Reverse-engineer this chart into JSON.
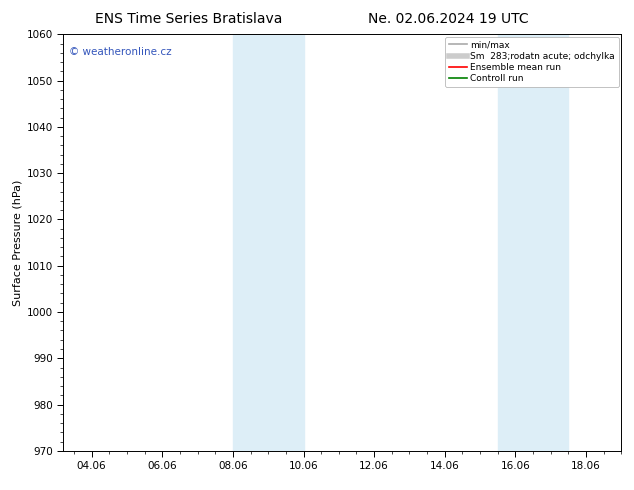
{
  "title_left": "ENS Time Series Bratislava",
  "title_right": "Ne. 02.06.2024 19 UTC",
  "ylabel": "Surface Pressure (hPa)",
  "ylim": [
    970,
    1060
  ],
  "yticks": [
    970,
    980,
    990,
    1000,
    1010,
    1020,
    1030,
    1040,
    1050,
    1060
  ],
  "xlim_start": 3.2,
  "xlim_end": 19.0,
  "xtick_labels": [
    "04.06",
    "06.06",
    "08.06",
    "10.06",
    "12.06",
    "14.06",
    "16.06",
    "18.06"
  ],
  "xtick_positions": [
    4,
    6,
    8,
    10,
    12,
    14,
    16,
    18
  ],
  "shaded_bands": [
    {
      "xmin": 8.0,
      "xmax": 10.0
    },
    {
      "xmin": 15.5,
      "xmax": 17.5
    }
  ],
  "shaded_color": "#ddeef7",
  "watermark_text": "© weatheronline.cz",
  "watermark_color": "#3355bb",
  "legend_entries": [
    {
      "label": "min/max",
      "color": "#aaaaaa",
      "linestyle": "-",
      "linewidth": 1.2
    },
    {
      "label": "Sm  283;rodatn acute; odchylka",
      "color": "#cccccc",
      "linestyle": "-",
      "linewidth": 4
    },
    {
      "label": "Ensemble mean run",
      "color": "red",
      "linestyle": "-",
      "linewidth": 1.2
    },
    {
      "label": "Controll run",
      "color": "green",
      "linestyle": "-",
      "linewidth": 1.2
    }
  ],
  "bg_color": "#ffffff",
  "spine_color": "#000000",
  "tick_color": "#000000",
  "title_fontsize": 10,
  "label_fontsize": 8,
  "tick_fontsize": 7.5,
  "watermark_fontsize": 7.5,
  "legend_fontsize": 6.5
}
